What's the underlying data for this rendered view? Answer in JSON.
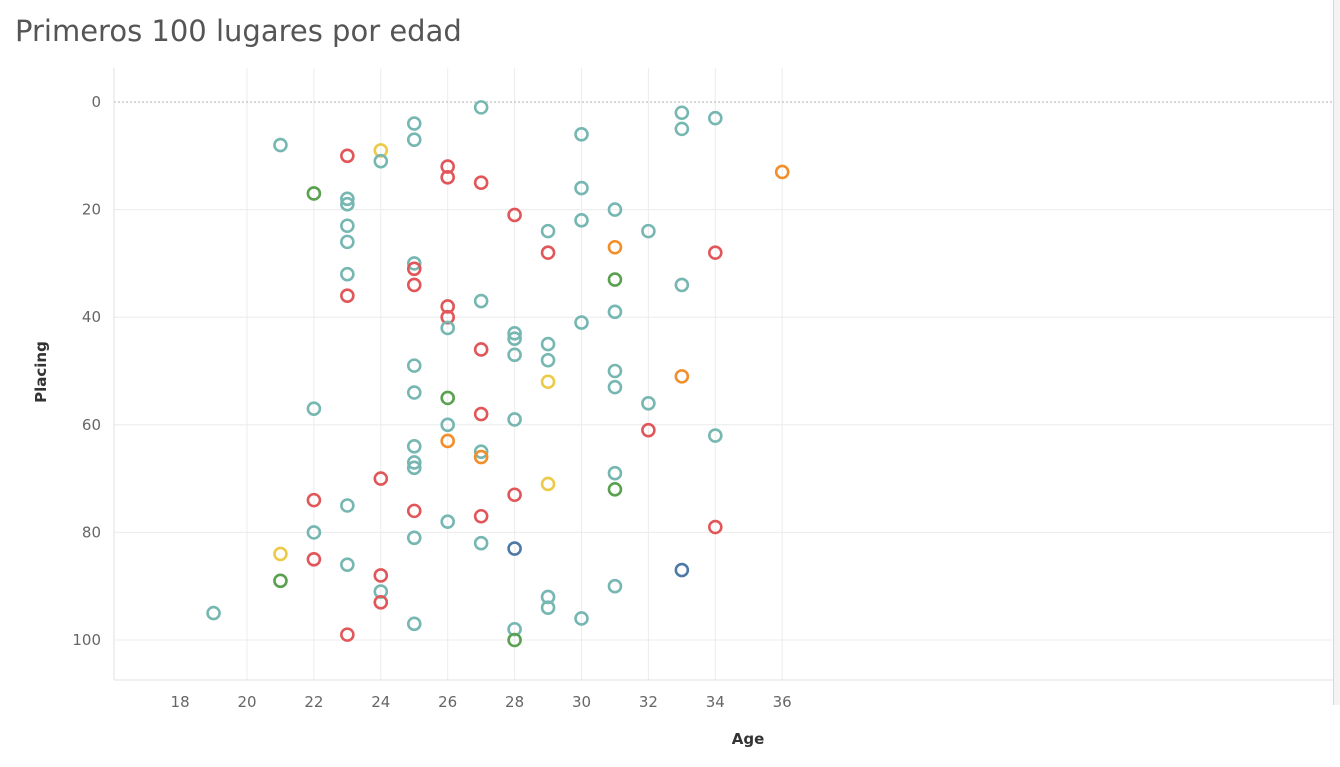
{
  "chart_data": {
    "type": "scatter",
    "title": "Primeros 100 lugares por edad",
    "xlabel": "Age",
    "ylabel": "Placing",
    "xlim": [
      17.8,
      36.3
    ],
    "ylim": [
      0,
      100
    ],
    "y_inverted": true,
    "xticks": [
      18,
      20,
      22,
      24,
      26,
      28,
      30,
      32,
      34,
      36
    ],
    "yticks": [
      0,
      20,
      40,
      60,
      80,
      100
    ],
    "grid": true,
    "colors": {
      "teal": "#76b7b2",
      "red": "#e15759",
      "yellow": "#edc948",
      "orange": "#f28e2b",
      "green": "#59a14f",
      "blue": "#4e79a7"
    },
    "points": [
      {
        "x": 19,
        "y": 95,
        "c": "teal"
      },
      {
        "x": 21,
        "y": 8,
        "c": "teal"
      },
      {
        "x": 21,
        "y": 84,
        "c": "yellow"
      },
      {
        "x": 21,
        "y": 89,
        "c": "green"
      },
      {
        "x": 22,
        "y": 17,
        "c": "green"
      },
      {
        "x": 22,
        "y": 57,
        "c": "teal"
      },
      {
        "x": 22,
        "y": 74,
        "c": "red"
      },
      {
        "x": 22,
        "y": 80,
        "c": "teal"
      },
      {
        "x": 22,
        "y": 85,
        "c": "red"
      },
      {
        "x": 23,
        "y": 10,
        "c": "red"
      },
      {
        "x": 23,
        "y": 18,
        "c": "teal"
      },
      {
        "x": 23,
        "y": 19,
        "c": "teal"
      },
      {
        "x": 23,
        "y": 23,
        "c": "teal"
      },
      {
        "x": 23,
        "y": 26,
        "c": "teal"
      },
      {
        "x": 23,
        "y": 32,
        "c": "teal"
      },
      {
        "x": 23,
        "y": 36,
        "c": "red"
      },
      {
        "x": 23,
        "y": 75,
        "c": "teal"
      },
      {
        "x": 23,
        "y": 86,
        "c": "teal"
      },
      {
        "x": 23,
        "y": 99,
        "c": "red"
      },
      {
        "x": 24,
        "y": 9,
        "c": "yellow"
      },
      {
        "x": 24,
        "y": 11,
        "c": "teal"
      },
      {
        "x": 24,
        "y": 70,
        "c": "red"
      },
      {
        "x": 24,
        "y": 88,
        "c": "red"
      },
      {
        "x": 24,
        "y": 91,
        "c": "teal"
      },
      {
        "x": 24,
        "y": 93,
        "c": "red"
      },
      {
        "x": 25,
        "y": 4,
        "c": "teal"
      },
      {
        "x": 25,
        "y": 7,
        "c": "teal"
      },
      {
        "x": 25,
        "y": 30,
        "c": "teal"
      },
      {
        "x": 25,
        "y": 31,
        "c": "red"
      },
      {
        "x": 25,
        "y": 34,
        "c": "red"
      },
      {
        "x": 25,
        "y": 49,
        "c": "teal"
      },
      {
        "x": 25,
        "y": 54,
        "c": "teal"
      },
      {
        "x": 25,
        "y": 64,
        "c": "teal"
      },
      {
        "x": 25,
        "y": 67,
        "c": "teal"
      },
      {
        "x": 25,
        "y": 68,
        "c": "teal"
      },
      {
        "x": 25,
        "y": 76,
        "c": "red"
      },
      {
        "x": 25,
        "y": 81,
        "c": "teal"
      },
      {
        "x": 25,
        "y": 97,
        "c": "teal"
      },
      {
        "x": 26,
        "y": 12,
        "c": "red"
      },
      {
        "x": 26,
        "y": 14,
        "c": "red"
      },
      {
        "x": 26,
        "y": 38,
        "c": "red"
      },
      {
        "x": 26,
        "y": 40,
        "c": "red"
      },
      {
        "x": 26,
        "y": 42,
        "c": "teal"
      },
      {
        "x": 26,
        "y": 55,
        "c": "green"
      },
      {
        "x": 26,
        "y": 60,
        "c": "teal"
      },
      {
        "x": 26,
        "y": 63,
        "c": "orange"
      },
      {
        "x": 26,
        "y": 78,
        "c": "teal"
      },
      {
        "x": 27,
        "y": 1,
        "c": "teal"
      },
      {
        "x": 27,
        "y": 15,
        "c": "red"
      },
      {
        "x": 27,
        "y": 37,
        "c": "teal"
      },
      {
        "x": 27,
        "y": 46,
        "c": "red"
      },
      {
        "x": 27,
        "y": 58,
        "c": "red"
      },
      {
        "x": 27,
        "y": 65,
        "c": "teal"
      },
      {
        "x": 27,
        "y": 66,
        "c": "orange"
      },
      {
        "x": 27,
        "y": 77,
        "c": "red"
      },
      {
        "x": 27,
        "y": 82,
        "c": "teal"
      },
      {
        "x": 28,
        "y": 21,
        "c": "red"
      },
      {
        "x": 28,
        "y": 43,
        "c": "teal"
      },
      {
        "x": 28,
        "y": 44,
        "c": "teal"
      },
      {
        "x": 28,
        "y": 47,
        "c": "teal"
      },
      {
        "x": 28,
        "y": 59,
        "c": "teal"
      },
      {
        "x": 28,
        "y": 73,
        "c": "red"
      },
      {
        "x": 28,
        "y": 83,
        "c": "blue"
      },
      {
        "x": 28,
        "y": 98,
        "c": "teal"
      },
      {
        "x": 28,
        "y": 100,
        "c": "green"
      },
      {
        "x": 29,
        "y": 24,
        "c": "teal"
      },
      {
        "x": 29,
        "y": 28,
        "c": "red"
      },
      {
        "x": 29,
        "y": 45,
        "c": "teal"
      },
      {
        "x": 29,
        "y": 48,
        "c": "teal"
      },
      {
        "x": 29,
        "y": 52,
        "c": "yellow"
      },
      {
        "x": 29,
        "y": 71,
        "c": "yellow"
      },
      {
        "x": 29,
        "y": 92,
        "c": "teal"
      },
      {
        "x": 29,
        "y": 94,
        "c": "teal"
      },
      {
        "x": 30,
        "y": 6,
        "c": "teal"
      },
      {
        "x": 30,
        "y": 16,
        "c": "teal"
      },
      {
        "x": 30,
        "y": 22,
        "c": "teal"
      },
      {
        "x": 30,
        "y": 41,
        "c": "teal"
      },
      {
        "x": 30,
        "y": 96,
        "c": "teal"
      },
      {
        "x": 31,
        "y": 20,
        "c": "teal"
      },
      {
        "x": 31,
        "y": 27,
        "c": "orange"
      },
      {
        "x": 31,
        "y": 33,
        "c": "green"
      },
      {
        "x": 31,
        "y": 39,
        "c": "teal"
      },
      {
        "x": 31,
        "y": 50,
        "c": "teal"
      },
      {
        "x": 31,
        "y": 53,
        "c": "teal"
      },
      {
        "x": 31,
        "y": 69,
        "c": "teal"
      },
      {
        "x": 31,
        "y": 72,
        "c": "green"
      },
      {
        "x": 31,
        "y": 90,
        "c": "teal"
      },
      {
        "x": 32,
        "y": 24,
        "c": "teal"
      },
      {
        "x": 32,
        "y": 56,
        "c": "teal"
      },
      {
        "x": 32,
        "y": 61,
        "c": "red"
      },
      {
        "x": 33,
        "y": 2,
        "c": "teal"
      },
      {
        "x": 33,
        "y": 5,
        "c": "teal"
      },
      {
        "x": 33,
        "y": 34,
        "c": "teal"
      },
      {
        "x": 33,
        "y": 51,
        "c": "orange"
      },
      {
        "x": 33,
        "y": 87,
        "c": "blue"
      },
      {
        "x": 34,
        "y": 3,
        "c": "teal"
      },
      {
        "x": 34,
        "y": 28,
        "c": "red"
      },
      {
        "x": 34,
        "y": 62,
        "c": "teal"
      },
      {
        "x": 34,
        "y": 79,
        "c": "red"
      },
      {
        "x": 36,
        "y": 13,
        "c": "orange"
      }
    ]
  }
}
